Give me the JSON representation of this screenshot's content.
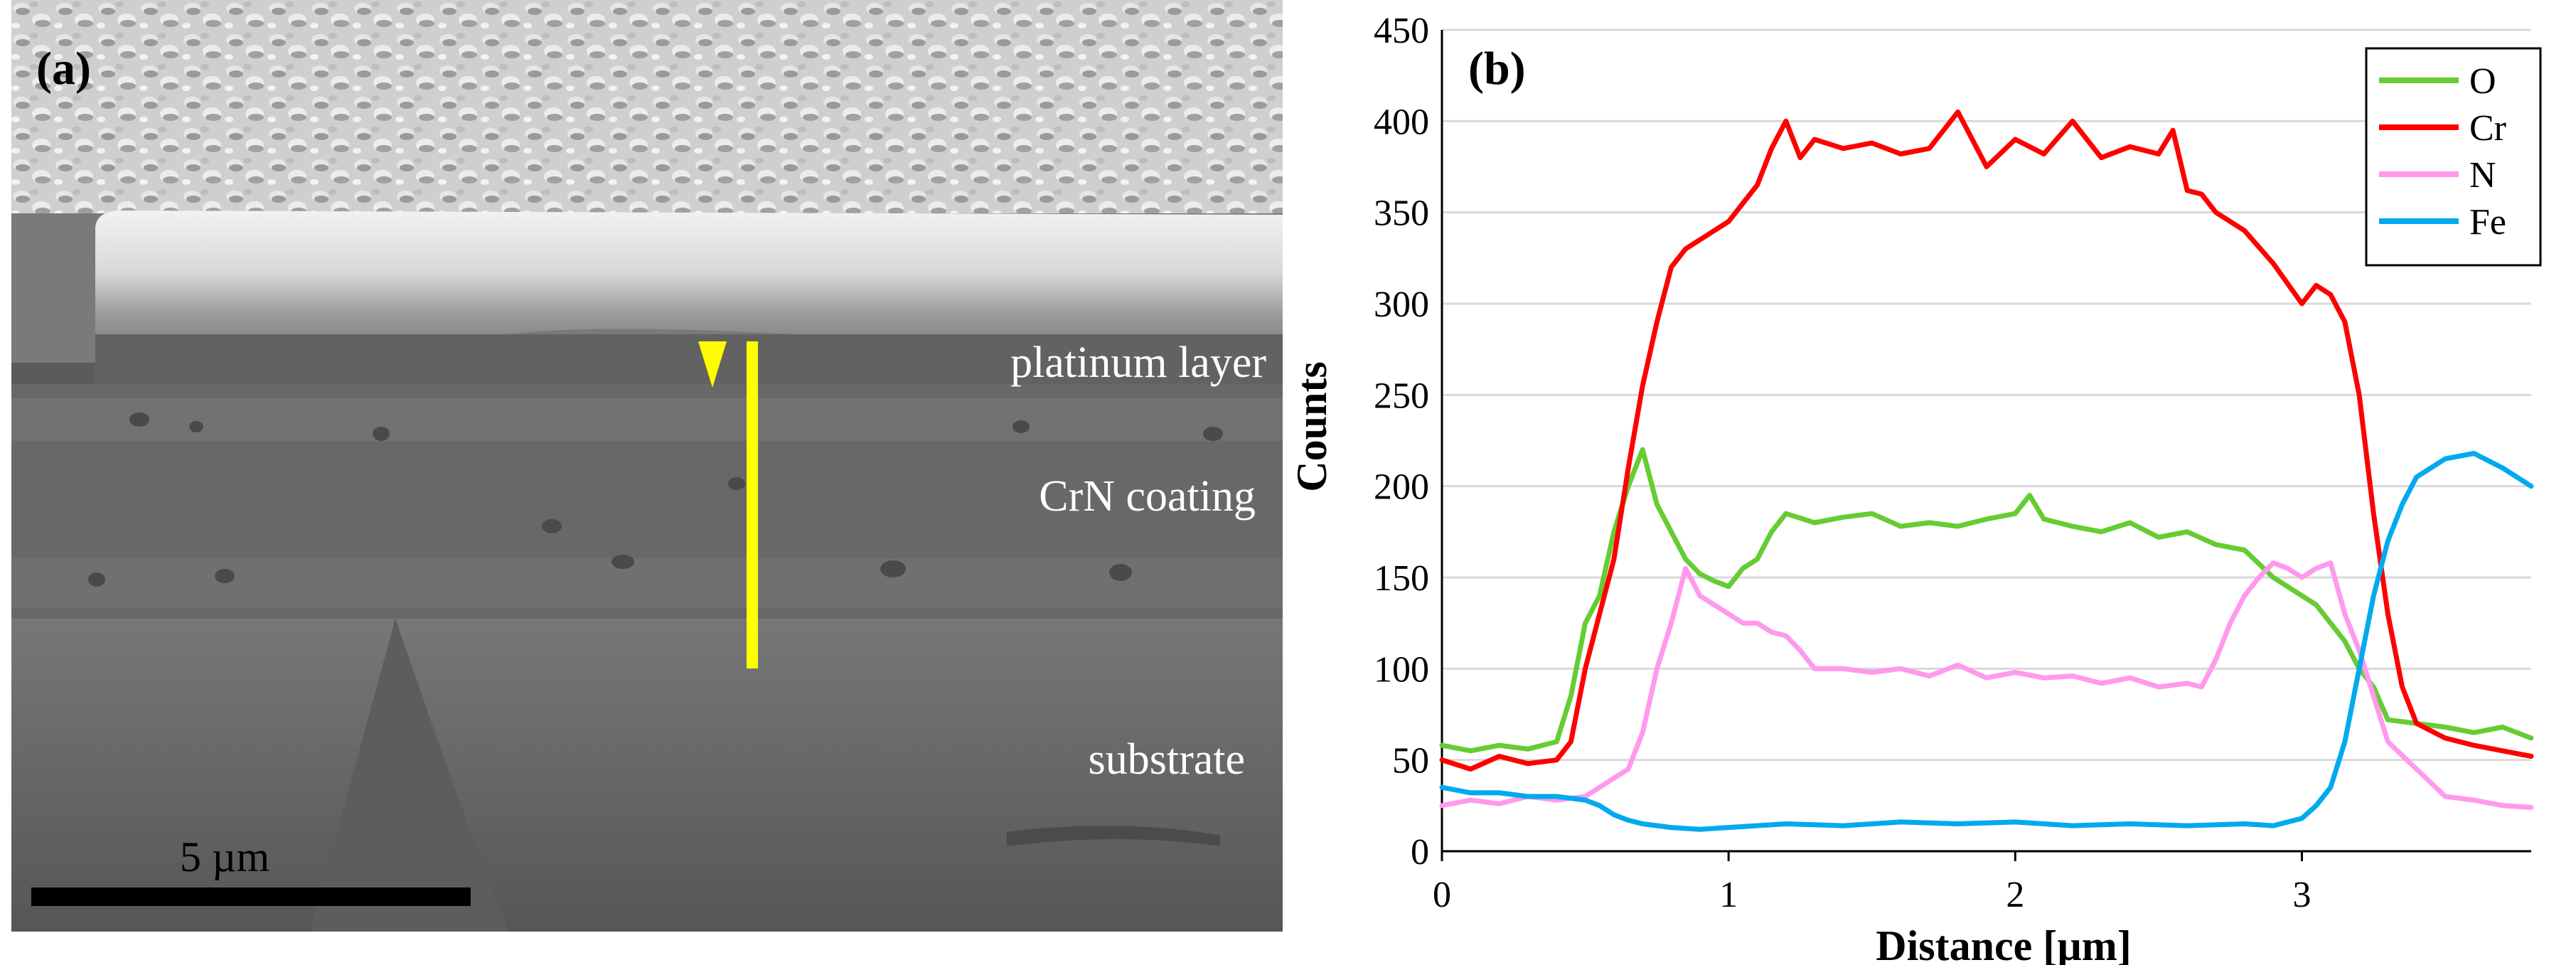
{
  "sem_panel": {
    "panel_label": "(a)",
    "labels": {
      "platinum": "platinum layer",
      "coating": "CrN coating",
      "substrate": "substrate"
    },
    "scale_bar": {
      "text": "5 µm"
    },
    "colors": {
      "linescan": "#ffff00",
      "background": "#5a5a5a"
    }
  },
  "chart_data": {
    "type": "line",
    "panel_label": "(b)",
    "title": "",
    "xlabel": "Distance [µm]",
    "ylabel": "Counts",
    "xlim": [
      0,
      3.8
    ],
    "ylim": [
      0,
      450
    ],
    "xticks": [
      0,
      1,
      2,
      3
    ],
    "yticks": [
      0,
      50,
      100,
      150,
      200,
      250,
      300,
      350,
      400,
      450
    ],
    "grid": true,
    "legend_position": "top-right",
    "series": [
      {
        "name": "O",
        "color": "#66cc33",
        "x": [
          0,
          0.1,
          0.2,
          0.3,
          0.4,
          0.45,
          0.5,
          0.55,
          0.6,
          0.65,
          0.7,
          0.75,
          0.8,
          0.85,
          0.9,
          0.95,
          1.0,
          1.05,
          1.1,
          1.15,
          1.2,
          1.3,
          1.4,
          1.5,
          1.6,
          1.7,
          1.8,
          1.9,
          2.0,
          2.05,
          2.1,
          2.2,
          2.3,
          2.4,
          2.5,
          2.6,
          2.7,
          2.8,
          2.9,
          3.0,
          3.05,
          3.1,
          3.15,
          3.2,
          3.25,
          3.3,
          3.4,
          3.5,
          3.6,
          3.7,
          3.8
        ],
        "y": [
          58,
          55,
          58,
          56,
          60,
          85,
          125,
          140,
          175,
          200,
          220,
          190,
          175,
          160,
          152,
          148,
          145,
          155,
          160,
          175,
          185,
          180,
          183,
          185,
          178,
          180,
          178,
          182,
          185,
          195,
          182,
          178,
          175,
          180,
          172,
          175,
          168,
          165,
          150,
          140,
          135,
          125,
          115,
          100,
          90,
          72,
          70,
          68,
          65,
          68,
          62
        ]
      },
      {
        "name": "Cr",
        "color": "#ff0000",
        "x": [
          0,
          0.1,
          0.2,
          0.3,
          0.4,
          0.45,
          0.5,
          0.55,
          0.6,
          0.65,
          0.7,
          0.75,
          0.8,
          0.85,
          0.9,
          0.95,
          1.0,
          1.05,
          1.1,
          1.15,
          1.2,
          1.25,
          1.3,
          1.4,
          1.5,
          1.6,
          1.7,
          1.8,
          1.9,
          2.0,
          2.1,
          2.2,
          2.3,
          2.4,
          2.5,
          2.55,
          2.6,
          2.65,
          2.7,
          2.8,
          2.9,
          3.0,
          3.05,
          3.1,
          3.15,
          3.2,
          3.25,
          3.3,
          3.35,
          3.4,
          3.5,
          3.6,
          3.7,
          3.8
        ],
        "y": [
          50,
          45,
          52,
          48,
          50,
          60,
          100,
          130,
          160,
          210,
          255,
          290,
          320,
          330,
          335,
          340,
          345,
          355,
          365,
          385,
          400,
          380,
          390,
          385,
          388,
          382,
          385,
          405,
          375,
          390,
          382,
          400,
          380,
          386,
          382,
          395,
          362,
          360,
          350,
          340,
          322,
          300,
          310,
          305,
          290,
          250,
          185,
          130,
          90,
          70,
          62,
          58,
          55,
          52
        ]
      },
      {
        "name": "N",
        "color": "#ff99ee",
        "x": [
          0,
          0.1,
          0.2,
          0.3,
          0.4,
          0.5,
          0.55,
          0.6,
          0.65,
          0.7,
          0.75,
          0.8,
          0.85,
          0.9,
          0.95,
          1.0,
          1.05,
          1.1,
          1.15,
          1.2,
          1.25,
          1.3,
          1.4,
          1.5,
          1.6,
          1.7,
          1.8,
          1.9,
          2.0,
          2.1,
          2.2,
          2.3,
          2.4,
          2.5,
          2.6,
          2.65,
          2.7,
          2.75,
          2.8,
          2.85,
          2.9,
          2.95,
          3.0,
          3.05,
          3.1,
          3.15,
          3.2,
          3.25,
          3.3,
          3.4,
          3.5,
          3.6,
          3.7,
          3.8
        ],
        "y": [
          25,
          28,
          26,
          30,
          28,
          30,
          35,
          40,
          45,
          65,
          100,
          125,
          155,
          140,
          135,
          130,
          125,
          125,
          120,
          118,
          110,
          100,
          100,
          98,
          100,
          96,
          102,
          95,
          98,
          95,
          96,
          92,
          95,
          90,
          92,
          90,
          105,
          125,
          140,
          150,
          158,
          155,
          150,
          155,
          158,
          130,
          110,
          85,
          60,
          45,
          30,
          28,
          25,
          24
        ]
      },
      {
        "name": "Fe",
        "color": "#00aaee",
        "x": [
          0,
          0.1,
          0.2,
          0.3,
          0.4,
          0.5,
          0.55,
          0.6,
          0.65,
          0.7,
          0.8,
          0.9,
          1.0,
          1.2,
          1.4,
          1.6,
          1.8,
          2.0,
          2.2,
          2.4,
          2.6,
          2.8,
          2.9,
          3.0,
          3.05,
          3.1,
          3.15,
          3.2,
          3.25,
          3.3,
          3.35,
          3.4,
          3.45,
          3.5,
          3.6,
          3.7,
          3.8
        ],
        "y": [
          35,
          32,
          32,
          30,
          30,
          28,
          25,
          20,
          17,
          15,
          13,
          12,
          13,
          15,
          14,
          16,
          15,
          16,
          14,
          15,
          14,
          15,
          14,
          18,
          25,
          35,
          60,
          100,
          140,
          170,
          190,
          205,
          210,
          215,
          218,
          210,
          200
        ]
      }
    ]
  }
}
